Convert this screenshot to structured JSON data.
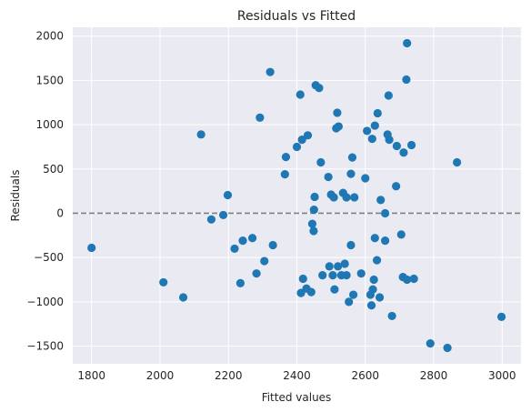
{
  "chart_data": {
    "type": "scatter",
    "title": "Residuals vs Fitted",
    "xlabel": "Fitted values",
    "ylabel": "Residuals",
    "xlim": [
      1745,
      3055
    ],
    "ylim": [
      -1700,
      2100
    ],
    "xticks": [
      1800,
      2000,
      2200,
      2400,
      2600,
      2800,
      3000
    ],
    "yticks": [
      -1500,
      -1000,
      -500,
      0,
      500,
      1000,
      1500,
      2000
    ],
    "ytick_labels": [
      "−1500",
      "−1000",
      "−500",
      "0",
      "500",
      "1000",
      "1500",
      "2000"
    ],
    "grid": true,
    "reference_line": {
      "y": 0,
      "style": "dashed",
      "color": "#808080"
    },
    "point_color": "#1f77b4",
    "background_color": "#eaeaf2",
    "points": [
      [
        1800,
        -390
      ],
      [
        2010,
        -780
      ],
      [
        2068,
        -950
      ],
      [
        2120,
        890
      ],
      [
        2150,
        -70
      ],
      [
        2185,
        -20
      ],
      [
        2198,
        205
      ],
      [
        2218,
        -400
      ],
      [
        2235,
        -790
      ],
      [
        2242,
        -310
      ],
      [
        2270,
        -280
      ],
      [
        2282,
        -680
      ],
      [
        2292,
        1080
      ],
      [
        2305,
        -540
      ],
      [
        2322,
        1595
      ],
      [
        2330,
        -360
      ],
      [
        2365,
        440
      ],
      [
        2368,
        635
      ],
      [
        2400,
        750
      ],
      [
        2410,
        1340
      ],
      [
        2412,
        -900
      ],
      [
        2415,
        830
      ],
      [
        2418,
        -740
      ],
      [
        2428,
        -850
      ],
      [
        2432,
        880
      ],
      [
        2442,
        -890
      ],
      [
        2445,
        -120
      ],
      [
        2449,
        -200
      ],
      [
        2450,
        40
      ],
      [
        2452,
        185
      ],
      [
        2455,
        1445
      ],
      [
        2465,
        1415
      ],
      [
        2470,
        575
      ],
      [
        2475,
        -700
      ],
      [
        2492,
        410
      ],
      [
        2495,
        -600
      ],
      [
        2500,
        210
      ],
      [
        2505,
        -700
      ],
      [
        2508,
        180
      ],
      [
        2510,
        -860
      ],
      [
        2515,
        960
      ],
      [
        2518,
        1135
      ],
      [
        2520,
        -600
      ],
      [
        2522,
        980
      ],
      [
        2530,
        -700
      ],
      [
        2535,
        230
      ],
      [
        2540,
        -570
      ],
      [
        2545,
        180
      ],
      [
        2545,
        -700
      ],
      [
        2552,
        -1000
      ],
      [
        2558,
        445
      ],
      [
        2558,
        -360
      ],
      [
        2562,
        630
      ],
      [
        2565,
        -920
      ],
      [
        2568,
        180
      ],
      [
        2588,
        -680
      ],
      [
        2600,
        395
      ],
      [
        2605,
        930
      ],
      [
        2615,
        -920
      ],
      [
        2618,
        -1040
      ],
      [
        2620,
        840
      ],
      [
        2622,
        -860
      ],
      [
        2625,
        -750
      ],
      [
        2628,
        990
      ],
      [
        2628,
        -280
      ],
      [
        2634,
        -530
      ],
      [
        2636,
        1130
      ],
      [
        2642,
        -950
      ],
      [
        2645,
        150
      ],
      [
        2658,
        0
      ],
      [
        2658,
        -310
      ],
      [
        2665,
        890
      ],
      [
        2668,
        1330
      ],
      [
        2670,
        830
      ],
      [
        2678,
        -1160
      ],
      [
        2690,
        305
      ],
      [
        2692,
        760
      ],
      [
        2705,
        -240
      ],
      [
        2710,
        -720
      ],
      [
        2712,
        685
      ],
      [
        2720,
        1510
      ],
      [
        2722,
        1920
      ],
      [
        2722,
        -750
      ],
      [
        2735,
        770
      ],
      [
        2742,
        -740
      ],
      [
        2790,
        -1470
      ],
      [
        2840,
        -1520
      ],
      [
        2868,
        575
      ],
      [
        2998,
        -1170
      ]
    ]
  }
}
